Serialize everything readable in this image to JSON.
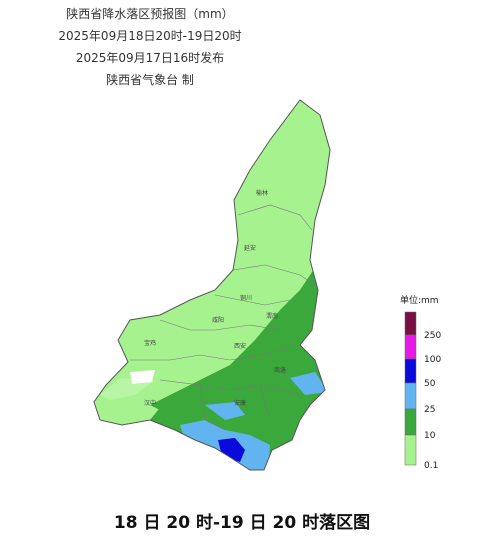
{
  "header": {
    "title": "陕西省降水落区预报图（mm）",
    "period": "2025年09月18日20时-19日20时",
    "issued": "2025年09月17日16时发布",
    "issuer": "陕西省气象台 制"
  },
  "legend": {
    "unit": "单位:mm",
    "items": [
      {
        "label": "250",
        "color": "#7a0f45"
      },
      {
        "label": "100",
        "color": "#e619e6"
      },
      {
        "label": "50",
        "color": "#0a0adc"
      },
      {
        "label": "25",
        "color": "#61b4f0"
      },
      {
        "label": "10",
        "color": "#3ba83b"
      },
      {
        "label": "0.1",
        "color": "#a6f28f"
      }
    ]
  },
  "cities": [
    "榆林",
    "延安",
    "铜川",
    "渭南",
    "咸阳",
    "西安",
    "宝鸡",
    "汉中",
    "安康",
    "商洛"
  ],
  "caption": "18 日 20 时-19 日 20 时落区图"
}
